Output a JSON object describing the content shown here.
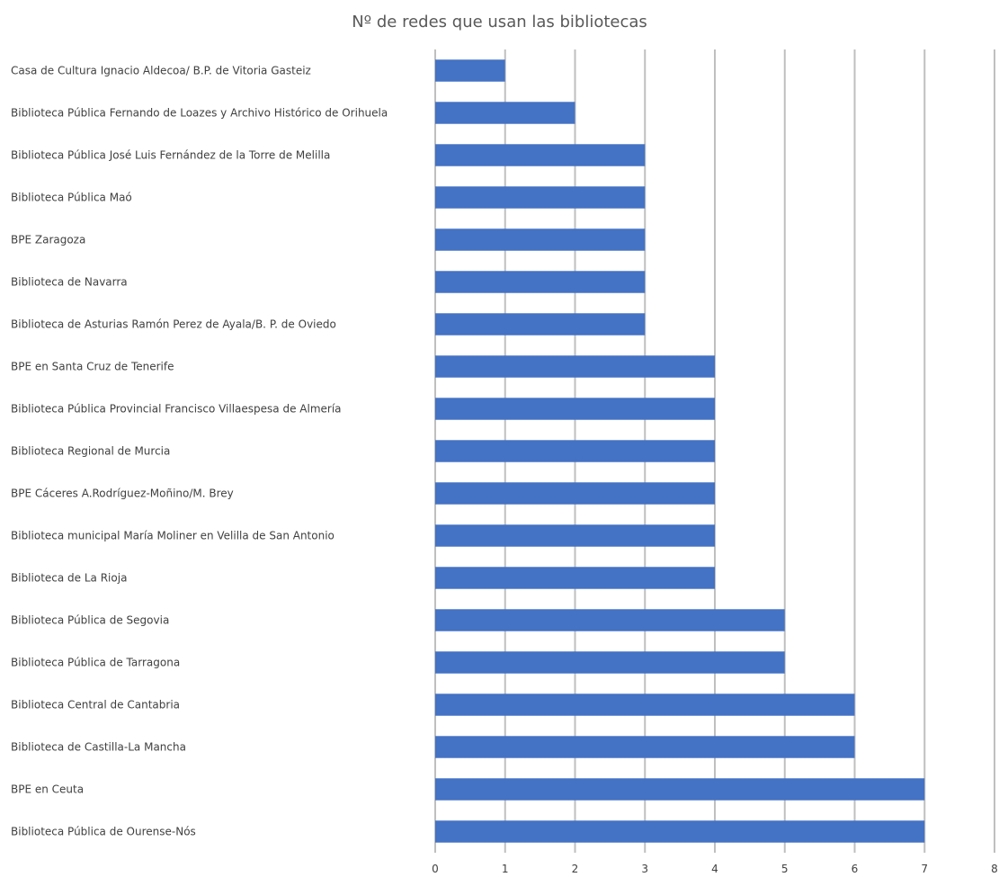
{
  "chart_data": {
    "type": "bar",
    "orientation": "horizontal",
    "title": "Nº de redes que usan las bibliotecas",
    "categories": [
      "Casa de Cultura Ignacio Aldecoa/ B.P. de Vitoria Gasteiz",
      "Biblioteca Pública Fernando de Loazes y Archivo Histórico de Orihuela",
      "Biblioteca Pública José Luis Fernández de la Torre de Melilla",
      "Biblioteca Pública Maó",
      "BPE Zaragoza",
      "Biblioteca de Navarra",
      "Biblioteca de Asturias Ramón Perez de Ayala/B. P. de Oviedo",
      "BPE en Santa Cruz de Tenerife",
      "Biblioteca Pública Provincial Francisco Villaespesa de Almería",
      "Biblioteca Regional de Murcia",
      "BPE Cáceres A.Rodríguez-Moñino/M. Brey",
      "Biblioteca municipal María Moliner en Velilla de San Antonio",
      "Biblioteca de La Rioja",
      "Biblioteca Pública de Segovia",
      "Biblioteca Pública de Tarragona",
      "Biblioteca Central de Cantabria",
      "Biblioteca de Castilla-La Mancha",
      "BPE en Ceuta",
      "Biblioteca Pública de Ourense-Nós"
    ],
    "values": [
      1,
      2,
      3,
      3,
      3,
      3,
      3,
      4,
      4,
      4,
      4,
      4,
      4,
      5,
      5,
      6,
      6,
      7,
      7
    ],
    "xlim": [
      0,
      8
    ],
    "ticks": [
      "0",
      "1",
      "2",
      "3",
      "4",
      "5",
      "6",
      "7",
      "8"
    ],
    "grid": true,
    "legend": "none",
    "bar_color": "#4472c4",
    "grid_color": "#bfbfbf"
  }
}
